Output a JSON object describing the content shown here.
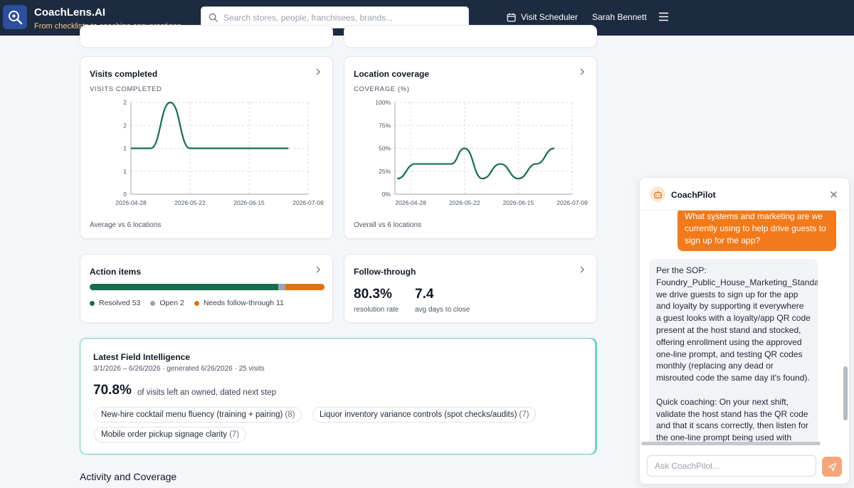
{
  "header": {
    "brand_title": "CoachLens.AI",
    "brand_tagline": "From checklists to coaching conversations.",
    "search_placeholder": "Search stores, people, franchisees, brands...",
    "visit_scheduler": "Visit Scheduler",
    "user_name": "Sarah Bennett"
  },
  "cards": {
    "visits": {
      "title": "Visits completed",
      "subtitle": "VISITS COMPLETED",
      "footer": "Average vs 6 locations"
    },
    "coverage": {
      "title": "Location coverage",
      "subtitle": "COVERAGE (%)",
      "footer": "Overall vs 6 locations"
    },
    "actions": {
      "title": "Action items",
      "resolved_label": "Resolved 53",
      "open_label": "Open 2",
      "needs_label": "Needs follow-through 11",
      "resolved": 53,
      "open": 2,
      "needs": 11,
      "colors": {
        "resolved": "#1a6b52",
        "open": "#9aa5b1",
        "needs": "#d97415"
      }
    },
    "follow": {
      "title": "Follow-through",
      "rate_value": "80.3%",
      "rate_label": "resolution rate",
      "days_value": "7.4",
      "days_label": "avg days to close"
    }
  },
  "chart_data": [
    {
      "type": "line",
      "title": "VISITS COMPLETED",
      "x_ticks": [
        "2026-04-28",
        "2026-05-22",
        "2026-06-15",
        "2026-07-09"
      ],
      "y_ticks": [
        "0",
        "1",
        "1",
        "2",
        "2"
      ],
      "ylim": [
        0,
        2
      ],
      "grid": true,
      "series": [
        {
          "color": "#1a6b52",
          "x": [
            "2026-04-28",
            "2026-05-06",
            "2026-05-14",
            "2026-05-22",
            "2026-05-30",
            "2026-06-07",
            "2026-06-15",
            "2026-06-23",
            "2026-07-01"
          ],
          "values": [
            1,
            1,
            2,
            1,
            1,
            1,
            1,
            1,
            1
          ]
        }
      ]
    },
    {
      "type": "line",
      "title": "COVERAGE (%)",
      "x_ticks": [
        "2026-04-28",
        "2026-05-22",
        "2026-06-15",
        "2026-07-09"
      ],
      "y_ticks": [
        "0%",
        "25%",
        "50%",
        "75%",
        "100%"
      ],
      "ylim": [
        0,
        100
      ],
      "grid": true,
      "series": [
        {
          "color": "#1a6b52",
          "x": [
            "2026-04-22",
            "2026-04-30",
            "2026-05-08",
            "2026-05-16",
            "2026-05-22",
            "2026-05-30",
            "2026-06-07",
            "2026-06-15",
            "2026-06-23",
            "2026-07-01"
          ],
          "values": [
            17,
            33,
            33,
            33,
            50,
            17,
            33,
            17,
            33,
            50
          ]
        }
      ]
    }
  ],
  "field_intel": {
    "title": "Latest Field Intelligence",
    "meta": "3/1/2026 – 6/26/2026 · generated 6/26/2026 · 25 visits",
    "pct": "70.8%",
    "pct_text": "of visits left an owned, dated next step",
    "chips": [
      {
        "label": "New-hire cocktail menu fluency (training + pairing)",
        "count": "(8)"
      },
      {
        "label": "Liquor inventory variance controls (spot checks/audits)",
        "count": "(7)"
      },
      {
        "label": "Mobile order pickup signage clarity",
        "count": "(7)"
      }
    ]
  },
  "section_heading": "Activity and Coverage",
  "coachpilot": {
    "name": "CoachPilot",
    "user_message": "What systems and marketing are we currently using to help drive guests to sign up for the app?",
    "bot_message": "Per the SOP: Foundry_Public_House_Marketing_Standards_Manu we drive guests to sign up for the app and loyalty by supporting it everywhere a guest looks with a loyalty/app QR code present at the host stand and stocked, offering enrollment using the approved one-line prompt, and testing QR codes monthly (replacing any dead or misrouted code the same day it's found).\n\nQuick coaching: On your next shift, validate the host stand has the QR code and that it scans correctly, then listen for the one-line prompt being used with",
    "input_placeholder": "Ask CoachPilot..."
  }
}
